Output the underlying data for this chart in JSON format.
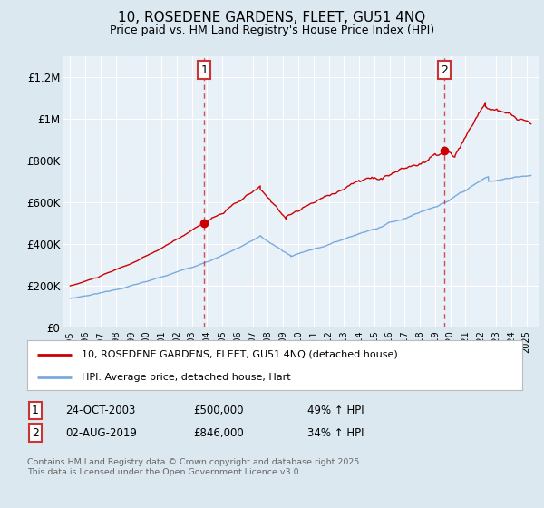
{
  "title": "10, ROSEDENE GARDENS, FLEET, GU51 4NQ",
  "subtitle": "Price paid vs. HM Land Registry's House Price Index (HPI)",
  "background_color": "#dce8f0",
  "plot_bg_color": "#e8f0f8",
  "ylim": [
    0,
    1300000
  ],
  "yticks": [
    0,
    200000,
    400000,
    600000,
    800000,
    1000000,
    1200000
  ],
  "ytick_labels": [
    "£0",
    "£200K",
    "£400K",
    "£600K",
    "£800K",
    "£1M",
    "£1.2M"
  ],
  "red_line_color": "#cc0000",
  "blue_line_color": "#7aaadd",
  "marker1_x": 2003.82,
  "marker1_y": 500000,
  "marker2_x": 2019.58,
  "marker2_y": 846000,
  "legend_red": "10, ROSEDENE GARDENS, FLEET, GU51 4NQ (detached house)",
  "legend_blue": "HPI: Average price, detached house, Hart",
  "footer": "Contains HM Land Registry data © Crown copyright and database right 2025.\nThis data is licensed under the Open Government Licence v3.0.",
  "xmin": 1994.5,
  "xmax": 2025.8
}
